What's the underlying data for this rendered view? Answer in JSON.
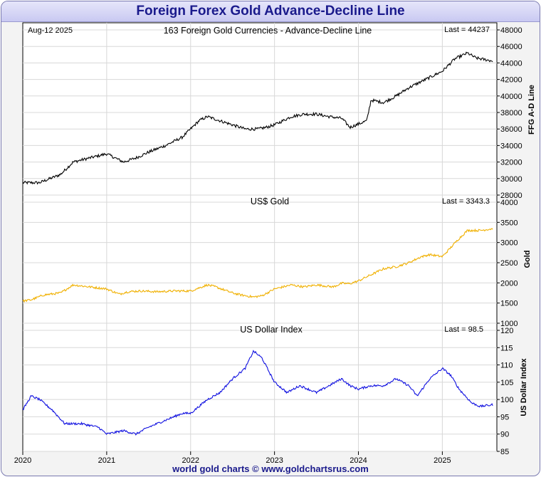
{
  "title": "Foreign Forex Gold Advance-Decline Line",
  "footer": "world gold charts © www.goldchartsrus.com",
  "date_label": "Aug-12  2025",
  "colors": {
    "ad_line": "#000000",
    "gold": "#f0b000",
    "dollar": "#1010e0",
    "title": "#1a1a8c",
    "grid": "#d8d8d8"
  },
  "chart_data": [
    {
      "type": "line",
      "title": "163 Foreign Gold Currencies - Advance-Decline Line",
      "ylabel": "FFG A-D Line",
      "last_label": "Last = 44237",
      "ylim": [
        28000,
        48000
      ],
      "yticks": [
        "28000",
        "30000",
        "32000",
        "34000",
        "36000",
        "38000",
        "40000",
        "42000",
        "44000",
        "46000",
        "48000"
      ],
      "x": [
        2020.0,
        2020.2,
        2020.45,
        2020.6,
        2020.8,
        2021.0,
        2021.1,
        2021.2,
        2021.35,
        2021.5,
        2021.7,
        2021.9,
        2022.1,
        2022.2,
        2022.35,
        2022.5,
        2022.65,
        2022.8,
        2022.9,
        2023.0,
        2023.2,
        2023.35,
        2023.5,
        2023.65,
        2023.8,
        2023.9,
        2024.0,
        2024.1,
        2024.15,
        2024.3,
        2024.45,
        2024.6,
        2024.8,
        2025.0,
        2025.15,
        2025.3,
        2025.4,
        2025.6
      ],
      "values": [
        29500,
        29500,
        30500,
        32000,
        32500,
        33000,
        32500,
        32000,
        32500,
        33200,
        34000,
        35000,
        37000,
        37500,
        37000,
        36500,
        36000,
        36000,
        36200,
        36500,
        37500,
        37800,
        37800,
        37500,
        37300,
        36200,
        36600,
        37000,
        39500,
        39200,
        40000,
        41000,
        42000,
        43000,
        44500,
        45200,
        44600,
        44237
      ]
    },
    {
      "type": "line",
      "title": "US$ Gold",
      "ylabel": "Gold",
      "last_label": "Last = 3343.3",
      "ylim": [
        1000,
        4000
      ],
      "yticks": [
        "1000",
        "1500",
        "2000",
        "2500",
        "3000",
        "3500",
        "4000"
      ],
      "x": [
        2020.0,
        2020.1,
        2020.25,
        2020.45,
        2020.6,
        2020.8,
        2021.0,
        2021.15,
        2021.25,
        2021.4,
        2021.6,
        2021.8,
        2022.0,
        2022.2,
        2022.3,
        2022.5,
        2022.6,
        2022.75,
        2022.85,
        2023.0,
        2023.2,
        2023.35,
        2023.5,
        2023.7,
        2023.8,
        2023.9,
        2024.0,
        2024.15,
        2024.3,
        2024.45,
        2024.6,
        2024.75,
        2024.85,
        2025.0,
        2025.2,
        2025.3,
        2025.45,
        2025.6
      ],
      "values": [
        1550,
        1580,
        1700,
        1750,
        1950,
        1900,
        1850,
        1720,
        1780,
        1800,
        1780,
        1800,
        1800,
        1950,
        1900,
        1750,
        1700,
        1650,
        1680,
        1850,
        1950,
        1900,
        1950,
        1900,
        1990,
        1980,
        2050,
        2200,
        2350,
        2400,
        2500,
        2650,
        2700,
        2650,
        3100,
        3300,
        3300,
        3343
      ]
    },
    {
      "type": "line",
      "title": "US Dollar Index",
      "ylabel": "US Dollar Index",
      "last_label": "Last = 98.5",
      "ylim": [
        85,
        120
      ],
      "yticks": [
        "85",
        "90",
        "95",
        "100",
        "105",
        "110",
        "115",
        "120"
      ],
      "x": [
        2020.0,
        2020.1,
        2020.2,
        2020.35,
        2020.5,
        2020.7,
        2020.9,
        2021.0,
        2021.2,
        2021.35,
        2021.5,
        2021.7,
        2021.9,
        2022.0,
        2022.2,
        2022.35,
        2022.5,
        2022.65,
        2022.75,
        2022.85,
        2023.0,
        2023.15,
        2023.3,
        2023.5,
        2023.65,
        2023.8,
        2023.9,
        2024.0,
        2024.15,
        2024.3,
        2024.45,
        2024.6,
        2024.7,
        2024.85,
        2025.0,
        2025.1,
        2025.2,
        2025.35,
        2025.45,
        2025.6
      ],
      "values": [
        97,
        101,
        100,
        97,
        93,
        93,
        92,
        90,
        91,
        90,
        92,
        94,
        96,
        96,
        100,
        102,
        106,
        109,
        114,
        112,
        105,
        102,
        104,
        102,
        104,
        106,
        104,
        103,
        104,
        104,
        106,
        104,
        101,
        106,
        109,
        107,
        103,
        99,
        98,
        98.5
      ]
    }
  ],
  "x_axis": {
    "range": [
      2020.0,
      2025.65
    ],
    "ticks": [
      "2020",
      "2021",
      "2022",
      "2023",
      "2024",
      "2025"
    ]
  }
}
